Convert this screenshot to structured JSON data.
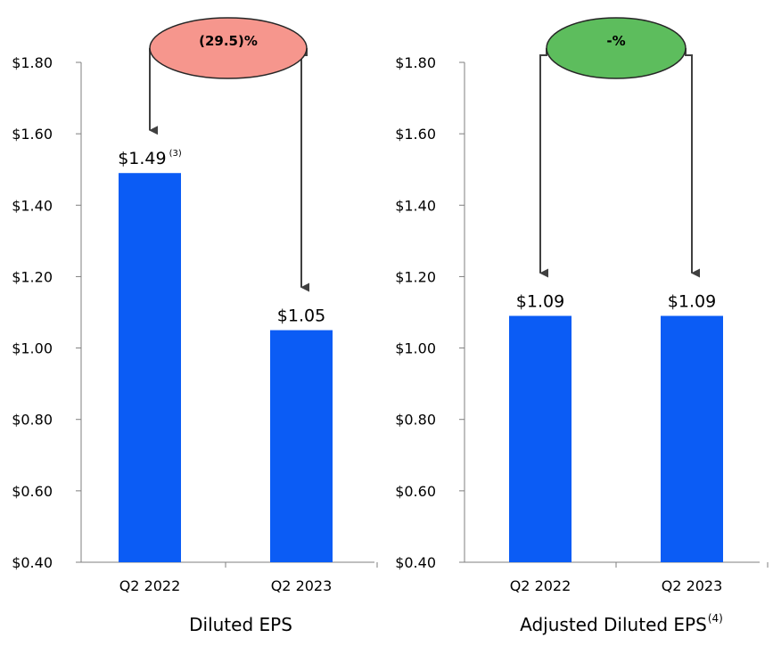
{
  "chart_data": [
    {
      "type": "bar",
      "categories": [
        "Q2 2022",
        "Q2 2023"
      ],
      "values": [
        1.49,
        1.05
      ],
      "data_labels": [
        "$1.49",
        "$1.05"
      ],
      "label_superscripts": [
        "(3)",
        ""
      ],
      "title": "Diluted EPS",
      "title_superscript": "",
      "ylim": [
        0.4,
        1.8
      ],
      "yticks": [
        0.4,
        0.6,
        0.8,
        1.0,
        1.2,
        1.4,
        1.6,
        1.8
      ],
      "ytick_labels": [
        "$0.40",
        "$0.60",
        "$0.80",
        "$1.00",
        "$1.20",
        "$1.40",
        "$1.60",
        "$1.80"
      ],
      "grid": false,
      "bar_color": "#0b5cf5",
      "change": {
        "label": "(29.5)%",
        "color": "#f6968d"
      }
    },
    {
      "type": "bar",
      "categories": [
        "Q2 2022",
        "Q2 2023"
      ],
      "values": [
        1.09,
        1.09
      ],
      "data_labels": [
        "$1.09",
        "$1.09"
      ],
      "label_superscripts": [
        "",
        ""
      ],
      "title": "Adjusted Diluted EPS",
      "title_superscript": "(4)",
      "ylim": [
        0.4,
        1.8
      ],
      "yticks": [
        0.4,
        0.6,
        0.8,
        1.0,
        1.2,
        1.4,
        1.6,
        1.8
      ],
      "ytick_labels": [
        "$0.40",
        "$0.60",
        "$0.80",
        "$1.00",
        "$1.20",
        "$1.40",
        "$1.60",
        "$1.80"
      ],
      "grid": false,
      "bar_color": "#0b5cf5",
      "change": {
        "label": "-%",
        "color": "#5dbd5d"
      }
    }
  ]
}
